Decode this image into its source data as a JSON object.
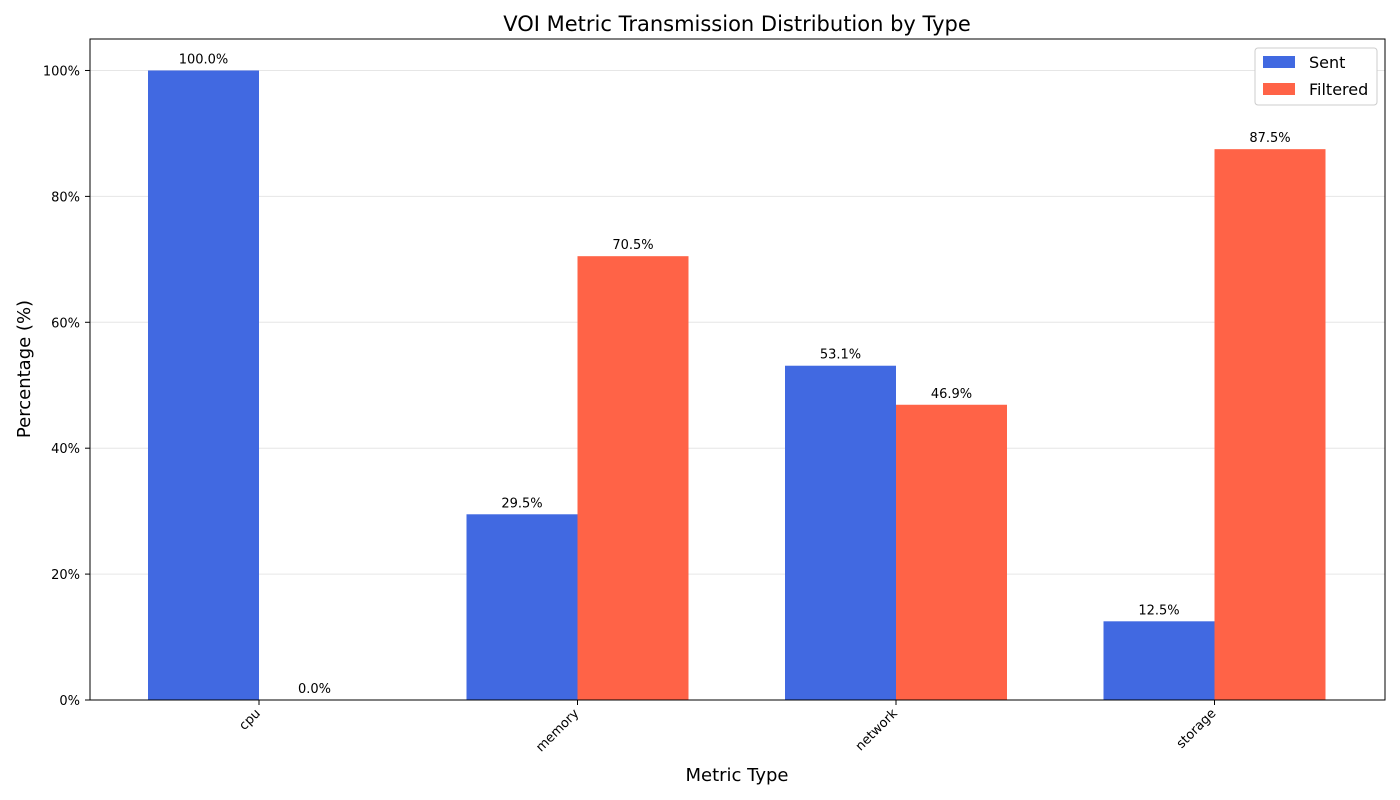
{
  "chart_data": {
    "type": "bar",
    "title": "VOI Metric Transmission Distribution by Type",
    "xlabel": "Metric Type",
    "ylabel": "Percentage (%)",
    "categories": [
      "cpu",
      "memory",
      "network",
      "storage"
    ],
    "series": [
      {
        "name": "Sent",
        "color": "#4169E1",
        "values": [
          100.0,
          29.5,
          53.1,
          12.5
        ],
        "labels": [
          "100.0%",
          "29.5%",
          "53.1%",
          "12.5%"
        ]
      },
      {
        "name": "Filtered",
        "color": "#FF6347",
        "values": [
          0.0,
          70.5,
          46.9,
          87.5
        ],
        "labels": [
          "0.0%",
          "70.5%",
          "46.9%",
          "87.5%"
        ]
      }
    ],
    "ylim": [
      0,
      105
    ],
    "yticks": [
      0,
      20,
      40,
      60,
      80,
      100
    ],
    "ytick_labels": [
      "0%",
      "20%",
      "40%",
      "60%",
      "80%",
      "100%"
    ],
    "grid": "y",
    "legend_position": "top-right"
  }
}
